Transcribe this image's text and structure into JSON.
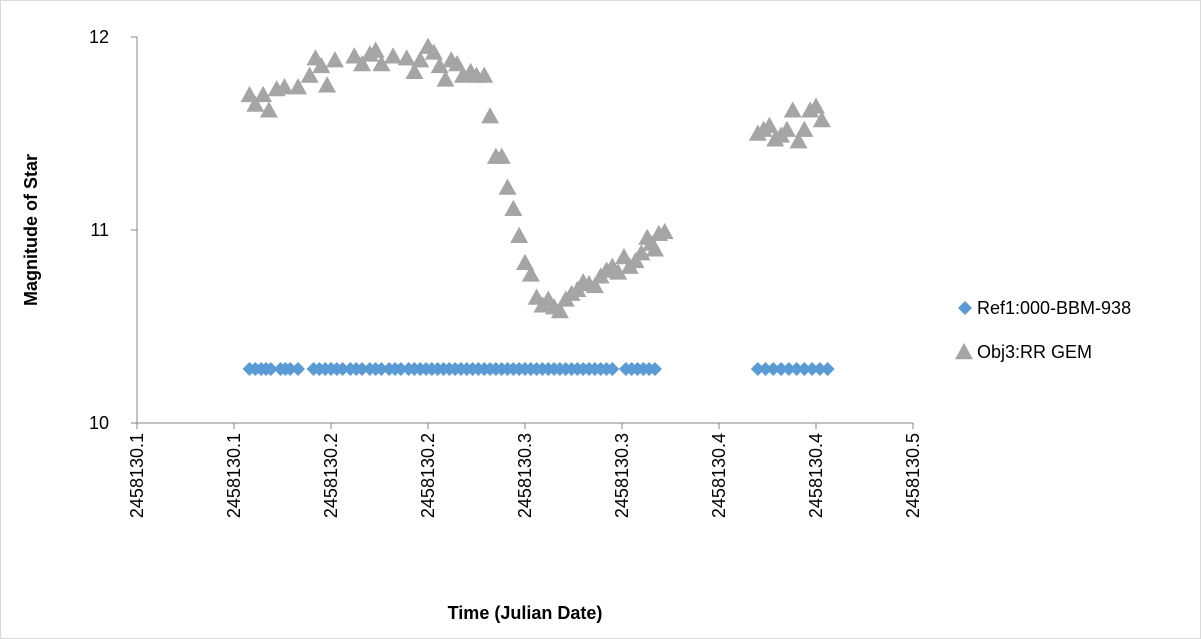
{
  "chart_data": {
    "type": "scatter",
    "title": "",
    "xlabel": "Time (Julian Date)",
    "ylabel": "Magnitude of Star",
    "xlim": [
      2458130.05,
      2458130.45
    ],
    "ylim": [
      10,
      12
    ],
    "x_ticks": [
      2458130.05,
      2458130.1,
      2458130.15,
      2458130.2,
      2458130.25,
      2458130.3,
      2458130.35,
      2458130.4,
      2458130.45
    ],
    "x_tick_labels": [
      "2458130.1",
      "2458130.1",
      "2458130.2",
      "2458130.2",
      "2458130.3",
      "2458130.3",
      "2458130.4",
      "2458130.4",
      "2458130.5"
    ],
    "y_ticks": [
      10,
      11,
      12
    ],
    "y_tick_labels": [
      "10",
      "11",
      "12"
    ],
    "grid": false,
    "legend_position": "right",
    "series": [
      {
        "name": "Ref1:000-BBM-938",
        "marker": "diamond",
        "color": "#5b9bd5",
        "points": [
          [
            2458130.108,
            10.28
          ],
          [
            2458130.111,
            10.28
          ],
          [
            2458130.114,
            10.28
          ],
          [
            2458130.1165,
            10.28
          ],
          [
            2458130.119,
            10.28
          ],
          [
            2458130.124,
            10.28
          ],
          [
            2458130.1265,
            10.28
          ],
          [
            2458130.129,
            10.28
          ],
          [
            2458130.133,
            10.28
          ],
          [
            2458130.141,
            10.28
          ],
          [
            2458130.144,
            10.28
          ],
          [
            2458130.147,
            10.28
          ],
          [
            2458130.15,
            10.28
          ],
          [
            2458130.153,
            10.28
          ],
          [
            2458130.156,
            10.28
          ],
          [
            2458130.16,
            10.28
          ],
          [
            2458130.163,
            10.28
          ],
          [
            2458130.166,
            10.28
          ],
          [
            2458130.17,
            10.28
          ],
          [
            2458130.173,
            10.28
          ],
          [
            2458130.176,
            10.28
          ],
          [
            2458130.18,
            10.28
          ],
          [
            2458130.183,
            10.28
          ],
          [
            2458130.186,
            10.28
          ],
          [
            2458130.19,
            10.28
          ],
          [
            2458130.193,
            10.28
          ],
          [
            2458130.196,
            10.28
          ],
          [
            2458130.199,
            10.28
          ],
          [
            2458130.202,
            10.28
          ],
          [
            2458130.205,
            10.28
          ],
          [
            2458130.208,
            10.28
          ],
          [
            2458130.211,
            10.28
          ],
          [
            2458130.214,
            10.28
          ],
          [
            2458130.217,
            10.28
          ],
          [
            2458130.22,
            10.28
          ],
          [
            2458130.223,
            10.28
          ],
          [
            2458130.226,
            10.28
          ],
          [
            2458130.229,
            10.28
          ],
          [
            2458130.232,
            10.28
          ],
          [
            2458130.235,
            10.28
          ],
          [
            2458130.238,
            10.28
          ],
          [
            2458130.241,
            10.28
          ],
          [
            2458130.244,
            10.28
          ],
          [
            2458130.247,
            10.28
          ],
          [
            2458130.25,
            10.28
          ],
          [
            2458130.253,
            10.28
          ],
          [
            2458130.256,
            10.28
          ],
          [
            2458130.259,
            10.28
          ],
          [
            2458130.262,
            10.28
          ],
          [
            2458130.265,
            10.28
          ],
          [
            2458130.268,
            10.28
          ],
          [
            2458130.271,
            10.28
          ],
          [
            2458130.274,
            10.28
          ],
          [
            2458130.277,
            10.28
          ],
          [
            2458130.28,
            10.28
          ],
          [
            2458130.283,
            10.28
          ],
          [
            2458130.286,
            10.28
          ],
          [
            2458130.289,
            10.28
          ],
          [
            2458130.292,
            10.28
          ],
          [
            2458130.295,
            10.28
          ],
          [
            2458130.302,
            10.28
          ],
          [
            2458130.305,
            10.28
          ],
          [
            2458130.308,
            10.28
          ],
          [
            2458130.311,
            10.28
          ],
          [
            2458130.314,
            10.28
          ],
          [
            2458130.317,
            10.28
          ],
          [
            2458130.37,
            10.28
          ],
          [
            2458130.374,
            10.28
          ],
          [
            2458130.378,
            10.28
          ],
          [
            2458130.382,
            10.28
          ],
          [
            2458130.386,
            10.28
          ],
          [
            2458130.39,
            10.28
          ],
          [
            2458130.394,
            10.28
          ],
          [
            2458130.398,
            10.28
          ],
          [
            2458130.402,
            10.28
          ],
          [
            2458130.406,
            10.28
          ]
        ]
      },
      {
        "name": "Obj3:RR GEM",
        "marker": "triangle",
        "color": "#a5a5a5",
        "points": [
          [
            2458130.108,
            11.7
          ],
          [
            2458130.111,
            11.65
          ],
          [
            2458130.115,
            11.7
          ],
          [
            2458130.118,
            11.62
          ],
          [
            2458130.122,
            11.73
          ],
          [
            2458130.126,
            11.74
          ],
          [
            2458130.133,
            11.74
          ],
          [
            2458130.139,
            11.8
          ],
          [
            2458130.142,
            11.89
          ],
          [
            2458130.145,
            11.85
          ],
          [
            2458130.148,
            11.75
          ],
          [
            2458130.152,
            11.88
          ],
          [
            2458130.162,
            11.9
          ],
          [
            2458130.166,
            11.86
          ],
          [
            2458130.17,
            11.91
          ],
          [
            2458130.173,
            11.93
          ],
          [
            2458130.176,
            11.86
          ],
          [
            2458130.182,
            11.9
          ],
          [
            2458130.189,
            11.89
          ],
          [
            2458130.193,
            11.82
          ],
          [
            2458130.196,
            11.88
          ],
          [
            2458130.2,
            11.95
          ],
          [
            2458130.203,
            11.92
          ],
          [
            2458130.206,
            11.85
          ],
          [
            2458130.209,
            11.78
          ],
          [
            2458130.212,
            11.88
          ],
          [
            2458130.215,
            11.86
          ],
          [
            2458130.218,
            11.8
          ],
          [
            2458130.222,
            11.82
          ],
          [
            2458130.225,
            11.8
          ],
          [
            2458130.229,
            11.8
          ],
          [
            2458130.232,
            11.59
          ],
          [
            2458130.235,
            11.38
          ],
          [
            2458130.238,
            11.38
          ],
          [
            2458130.241,
            11.22
          ],
          [
            2458130.244,
            11.11
          ],
          [
            2458130.247,
            10.97
          ],
          [
            2458130.25,
            10.83
          ],
          [
            2458130.253,
            10.77
          ],
          [
            2458130.256,
            10.65
          ],
          [
            2458130.259,
            10.61
          ],
          [
            2458130.262,
            10.64
          ],
          [
            2458130.265,
            10.6
          ],
          [
            2458130.268,
            10.58
          ],
          [
            2458130.271,
            10.64
          ],
          [
            2458130.274,
            10.67
          ],
          [
            2458130.277,
            10.69
          ],
          [
            2458130.28,
            10.73
          ],
          [
            2458130.283,
            10.72
          ],
          [
            2458130.286,
            10.71
          ],
          [
            2458130.289,
            10.76
          ],
          [
            2458130.292,
            10.79
          ],
          [
            2458130.295,
            10.81
          ],
          [
            2458130.298,
            10.78
          ],
          [
            2458130.301,
            10.86
          ],
          [
            2458130.304,
            10.81
          ],
          [
            2458130.307,
            10.84
          ],
          [
            2458130.31,
            10.88
          ],
          [
            2458130.313,
            10.96
          ],
          [
            2458130.315,
            10.93
          ],
          [
            2458130.317,
            10.9
          ],
          [
            2458130.319,
            10.98
          ],
          [
            2458130.322,
            10.99
          ],
          [
            2458130.37,
            11.5
          ],
          [
            2458130.373,
            11.52
          ],
          [
            2458130.376,
            11.54
          ],
          [
            2458130.379,
            11.47
          ],
          [
            2458130.382,
            11.49
          ],
          [
            2458130.385,
            11.52
          ],
          [
            2458130.388,
            11.62
          ],
          [
            2458130.391,
            11.46
          ],
          [
            2458130.394,
            11.52
          ],
          [
            2458130.397,
            11.62
          ],
          [
            2458130.4,
            11.64
          ],
          [
            2458130.403,
            11.57
          ]
        ]
      }
    ]
  }
}
